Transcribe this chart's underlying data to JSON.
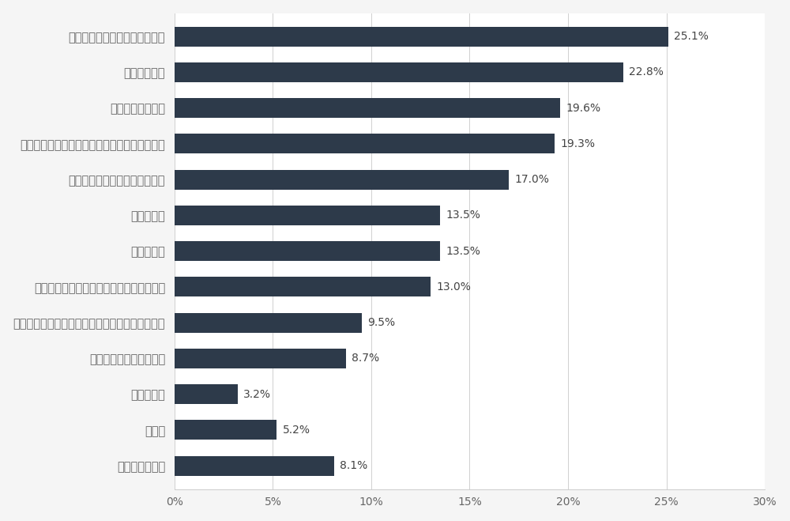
{
  "categories": [
    "休日など自由な時間を増やした",
    "お金をかけた",
    "健康に気を遣った",
    "仕事をたくさんした（転職や副業、残業など）",
    "コミュニケーションを密にした",
    "運動をした",
    "外出をした",
    "生活習慣を見直した（食生活や睡眠など）",
    "勉強した（学校に通う、参考書を購入するなど）",
    "人と合う回数を増やした",
    "練習をした",
    "その他",
    "何もしなかった"
  ],
  "values": [
    25.1,
    22.8,
    19.6,
    19.3,
    17.0,
    13.5,
    13.5,
    13.0,
    9.5,
    8.7,
    3.2,
    5.2,
    8.1
  ],
  "bar_color": "#2d3a4a",
  "label_color": "#666666",
  "value_label_color": "#444444",
  "background_color": "#f5f5f5",
  "plot_bg_color": "#ffffff",
  "xlim": [
    0,
    30
  ],
  "xticks": [
    0,
    5,
    10,
    15,
    20,
    25,
    30
  ],
  "xtick_labels": [
    "0%",
    "5%",
    "10%",
    "15%",
    "20%",
    "25%",
    "30%"
  ],
  "bar_height": 0.55,
  "figsize": [
    10.0,
    6.59
  ],
  "dpi": 100,
  "tick_fontsize": 10,
  "label_fontsize": 10.5,
  "value_fontsize": 10
}
